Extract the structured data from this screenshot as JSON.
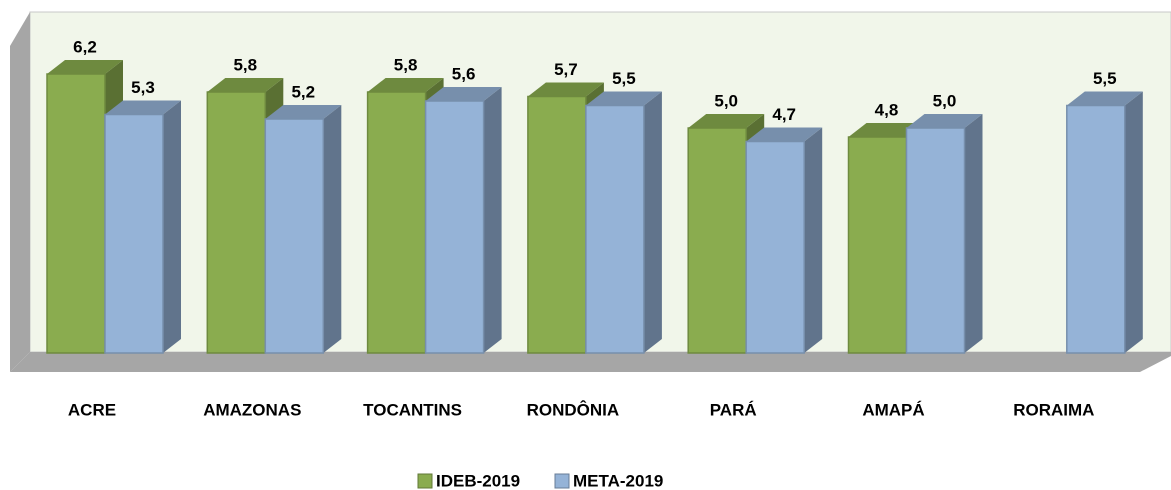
{
  "chart_data": {
    "type": "bar3d",
    "categories": [
      "ACRE",
      "AMAZONAS",
      "TOCANTINS",
      "RONDÔNIA",
      "PARÁ",
      "AMAPÁ",
      "RORAIMA"
    ],
    "series": [
      {
        "name": "IDEB-2019",
        "color": "#8aac4f",
        "values": [
          6.2,
          5.8,
          5.8,
          5.7,
          5.0,
          4.8,
          null
        ],
        "value_labels": [
          "6,2",
          "5,8",
          "5,8",
          "5,7",
          "5,0",
          "4,8",
          null
        ]
      },
      {
        "name": "META-2019",
        "color": "#95b3d7",
        "values": [
          5.3,
          5.2,
          5.6,
          5.5,
          4.7,
          5.0,
          5.5
        ],
        "value_labels": [
          "5,3",
          "5,2",
          "5,6",
          "5,5",
          "4,7",
          "5,0",
          "5,5"
        ]
      }
    ],
    "legend": "bottom"
  }
}
